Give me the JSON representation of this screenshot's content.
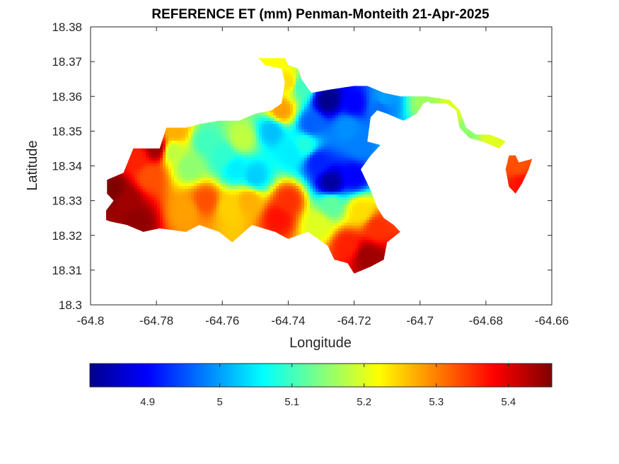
{
  "chart_data": {
    "type": "heatmap",
    "title": "REFERENCE ET (mm) Penman-Monteith 21-Apr-2025",
    "xlabel": "Longitude",
    "ylabel": "Latitude",
    "xlim": [
      -64.8,
      -64.66
    ],
    "ylim": [
      18.3,
      18.38
    ],
    "xticks": [
      "-64.8",
      "-64.78",
      "-64.76",
      "-64.74",
      "-64.72",
      "-64.7",
      "-64.68",
      "-64.66"
    ],
    "yticks": [
      "18.3",
      "18.31",
      "18.32",
      "18.33",
      "18.34",
      "18.35",
      "18.36",
      "18.37",
      "18.38"
    ],
    "colormap": "jet",
    "colorbar": {
      "orientation": "horizontal",
      "range": [
        4.82,
        5.46
      ],
      "ticks": [
        "4.9",
        "5",
        "5.1",
        "5.2",
        "5.3",
        "5.4"
      ]
    },
    "outline": [
      [
        -64.795,
        18.336
      ],
      [
        -64.79,
        18.338
      ],
      [
        -64.787,
        18.345
      ],
      [
        -64.779,
        18.345
      ],
      [
        -64.777,
        18.351
      ],
      [
        -64.771,
        18.351
      ],
      [
        -64.767,
        18.352
      ],
      [
        -64.761,
        18.353
      ],
      [
        -64.755,
        18.353
      ],
      [
        -64.75,
        18.355
      ],
      [
        -64.745,
        18.356
      ],
      [
        -64.742,
        18.358
      ],
      [
        -64.741,
        18.364
      ],
      [
        -64.742,
        18.368
      ],
      [
        -64.747,
        18.369
      ],
      [
        -64.749,
        18.371
      ],
      [
        -64.741,
        18.371
      ],
      [
        -64.74,
        18.369
      ],
      [
        -64.737,
        18.368
      ],
      [
        -64.736,
        18.365
      ],
      [
        -64.733,
        18.361
      ],
      [
        -64.727,
        18.362
      ],
      [
        -64.72,
        18.363
      ],
      [
        -64.716,
        18.363
      ],
      [
        -64.711,
        18.361
      ],
      [
        -64.706,
        18.36
      ],
      [
        -64.698,
        18.36
      ],
      [
        -64.696,
        18.359
      ],
      [
        -64.699,
        18.358
      ],
      [
        -64.701,
        18.355
      ],
      [
        -64.705,
        18.353
      ],
      [
        -64.71,
        18.355
      ],
      [
        -64.713,
        18.356
      ],
      [
        -64.715,
        18.354
      ],
      [
        -64.716,
        18.347
      ],
      [
        -64.712,
        18.346
      ],
      [
        -64.715,
        18.343
      ],
      [
        -64.718,
        18.339
      ],
      [
        -64.715,
        18.333
      ],
      [
        -64.713,
        18.328
      ],
      [
        -64.711,
        18.325
      ],
      [
        -64.708,
        18.323
      ],
      [
        -64.706,
        18.321
      ],
      [
        -64.71,
        18.318
      ],
      [
        -64.711,
        18.313
      ],
      [
        -64.715,
        18.311
      ],
      [
        -64.72,
        18.309
      ],
      [
        -64.722,
        18.312
      ],
      [
        -64.726,
        18.313
      ],
      [
        -64.728,
        18.317
      ],
      [
        -64.734,
        18.321
      ],
      [
        -64.74,
        18.319
      ],
      [
        -64.744,
        18.321
      ],
      [
        -64.751,
        18.323
      ],
      [
        -64.757,
        18.318
      ],
      [
        -64.761,
        18.321
      ],
      [
        -64.767,
        18.323
      ],
      [
        -64.771,
        18.321
      ],
      [
        -64.779,
        18.322
      ],
      [
        -64.784,
        18.321
      ],
      [
        -64.789,
        18.323
      ],
      [
        -64.794,
        18.324
      ],
      [
        -64.797,
        18.325
      ],
      [
        -64.793,
        18.33
      ],
      [
        -64.795,
        18.332
      ]
    ],
    "east_features": [
      [
        [
          -64.698,
          18.36
        ],
        [
          -64.691,
          18.359
        ],
        [
          -64.688,
          18.356
        ],
        [
          -64.686,
          18.351
        ],
        [
          -64.683,
          18.349
        ],
        [
          -64.679,
          18.349
        ],
        [
          -64.676,
          18.348
        ],
        [
          -64.674,
          18.347
        ],
        [
          -64.676,
          18.345
        ],
        [
          -64.681,
          18.347
        ],
        [
          -64.685,
          18.348
        ],
        [
          -64.688,
          18.351
        ],
        [
          -64.689,
          18.356
        ],
        [
          -64.692,
          18.358
        ],
        [
          -64.697,
          18.358
        ]
      ],
      [
        [
          -64.673,
          18.343
        ],
        [
          -64.671,
          18.343
        ],
        [
          -64.67,
          18.341
        ],
        [
          -64.666,
          18.342
        ],
        [
          -64.667,
          18.339
        ],
        [
          -64.669,
          18.335
        ],
        [
          -64.671,
          18.332
        ],
        [
          -64.673,
          18.334
        ],
        [
          -64.674,
          18.339
        ]
      ]
    ],
    "value_seeds": [
      [
        -64.728,
        18.359,
        4.83
      ],
      [
        -64.72,
        18.358,
        4.9
      ],
      [
        -64.712,
        18.357,
        4.97
      ],
      [
        -64.727,
        18.335,
        4.84
      ],
      [
        -64.72,
        18.337,
        4.9
      ],
      [
        -64.731,
        18.341,
        4.92
      ],
      [
        -64.718,
        18.346,
        4.98
      ],
      [
        -64.733,
        18.352,
        4.96
      ],
      [
        -64.722,
        18.351,
        4.99
      ],
      [
        -64.711,
        18.359,
        5.0
      ],
      [
        -64.739,
        18.344,
        5.05
      ],
      [
        -64.745,
        18.35,
        5.02
      ],
      [
        -64.75,
        18.337,
        5.03
      ],
      [
        -64.756,
        18.339,
        5.05
      ],
      [
        -64.76,
        18.343,
        5.09
      ],
      [
        -64.765,
        18.347,
        5.1
      ],
      [
        -64.77,
        18.34,
        5.15
      ],
      [
        -64.775,
        18.344,
        5.18
      ],
      [
        -64.742,
        18.356,
        5.28
      ],
      [
        -64.74,
        18.364,
        5.24
      ],
      [
        -64.745,
        18.369,
        5.22
      ],
      [
        -64.736,
        18.363,
        5.1
      ],
      [
        -64.74,
        18.33,
        5.35
      ],
      [
        -64.743,
        18.325,
        5.37
      ],
      [
        -64.752,
        18.33,
        5.27
      ],
      [
        -64.758,
        18.328,
        5.25
      ],
      [
        -64.765,
        18.33,
        5.33
      ],
      [
        -64.771,
        18.327,
        5.28
      ],
      [
        -64.789,
        18.33,
        5.44
      ],
      [
        -64.793,
        18.333,
        5.46
      ],
      [
        -64.786,
        18.324,
        5.45
      ],
      [
        -64.782,
        18.337,
        5.33
      ],
      [
        -64.786,
        18.342,
        5.36
      ],
      [
        -64.78,
        18.345,
        5.44
      ],
      [
        -64.774,
        18.35,
        5.27
      ],
      [
        -64.731,
        18.323,
        5.2
      ],
      [
        -64.727,
        18.329,
        5.12
      ],
      [
        -64.718,
        18.327,
        5.24
      ],
      [
        -64.713,
        18.322,
        5.35
      ],
      [
        -64.716,
        18.314,
        5.44
      ],
      [
        -64.712,
        18.311,
        5.44
      ],
      [
        -64.722,
        18.317,
        5.36
      ],
      [
        -64.754,
        18.348,
        5.18
      ],
      [
        -64.735,
        18.346,
        5.08
      ],
      [
        -64.698,
        18.358,
        5.16
      ],
      [
        -64.69,
        18.357,
        5.2
      ],
      [
        -64.685,
        18.35,
        5.15
      ],
      [
        -64.678,
        18.348,
        5.2
      ],
      [
        -64.67,
        18.34,
        5.33
      ],
      [
        -64.669,
        18.335,
        5.37
      ],
      [
        -64.707,
        18.346,
        5.02
      ]
    ]
  }
}
